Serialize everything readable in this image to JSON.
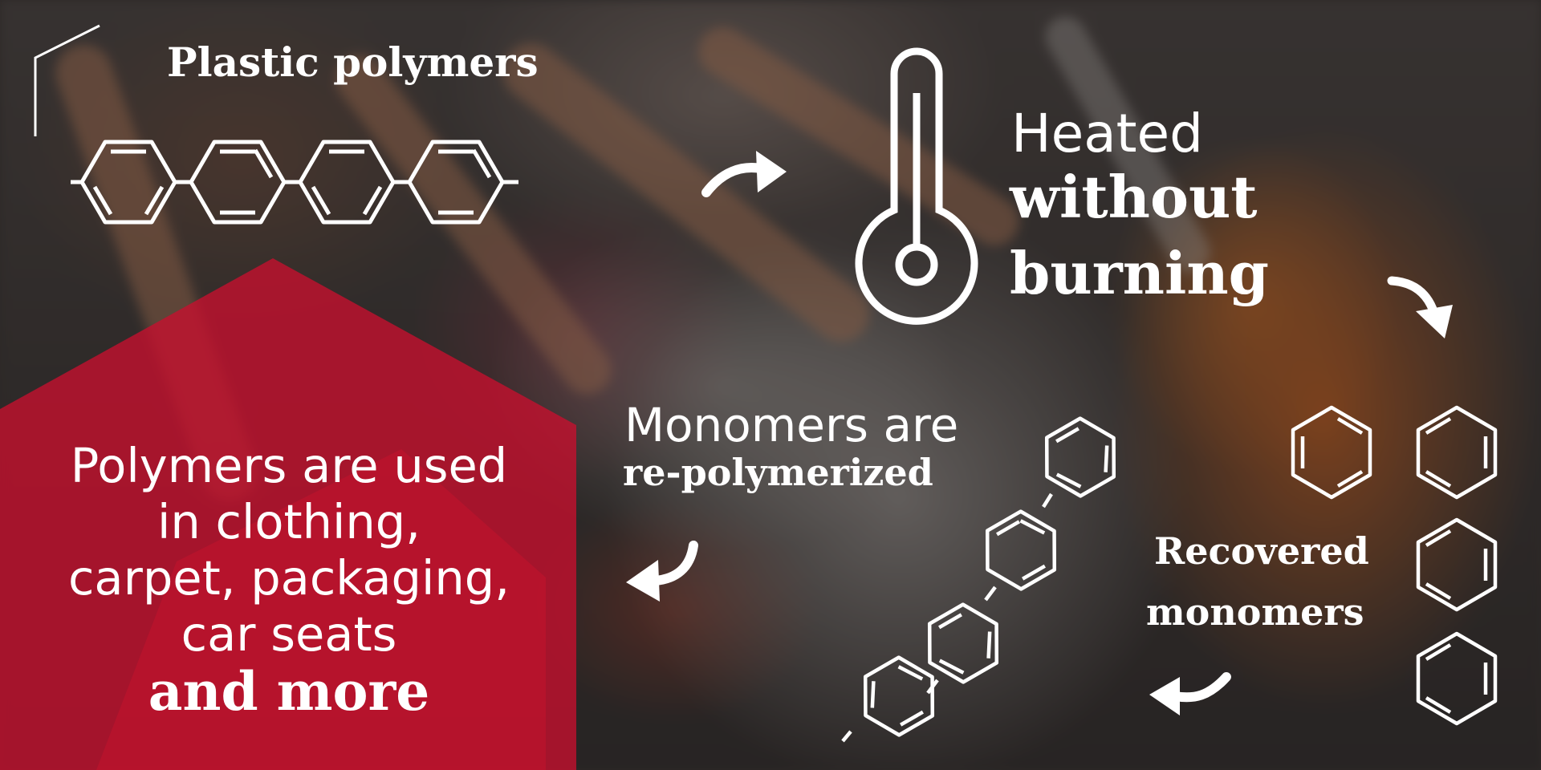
{
  "background": {
    "accent_red": "#c8102e",
    "description_icon": "clothing-rack-photo"
  },
  "steps": {
    "plastic_polymers": {
      "title": "Plastic polymers",
      "icon": "benzene-chain-icon"
    },
    "heated": {
      "line1": "Heated",
      "line2": "without",
      "line3": "burning",
      "icon": "thermometer-icon"
    },
    "recovered": {
      "line1": "Recovered",
      "line2": "monomers",
      "icon": "benzene-ring-icon"
    },
    "repolymerized": {
      "line1": "Monomers are",
      "line2": "re-polymerized",
      "icon": "benzene-chain-diagonal-icon"
    }
  },
  "uses": {
    "line1": "Polymers are used",
    "line2": "in clothing,",
    "line3": "carpet, packaging,",
    "line4": "car seats",
    "line5": "and more"
  },
  "arrows": [
    "curved-arrow-right-icon",
    "curved-arrow-down-icon",
    "curved-arrow-left-icon",
    "curved-arrow-left-icon"
  ]
}
